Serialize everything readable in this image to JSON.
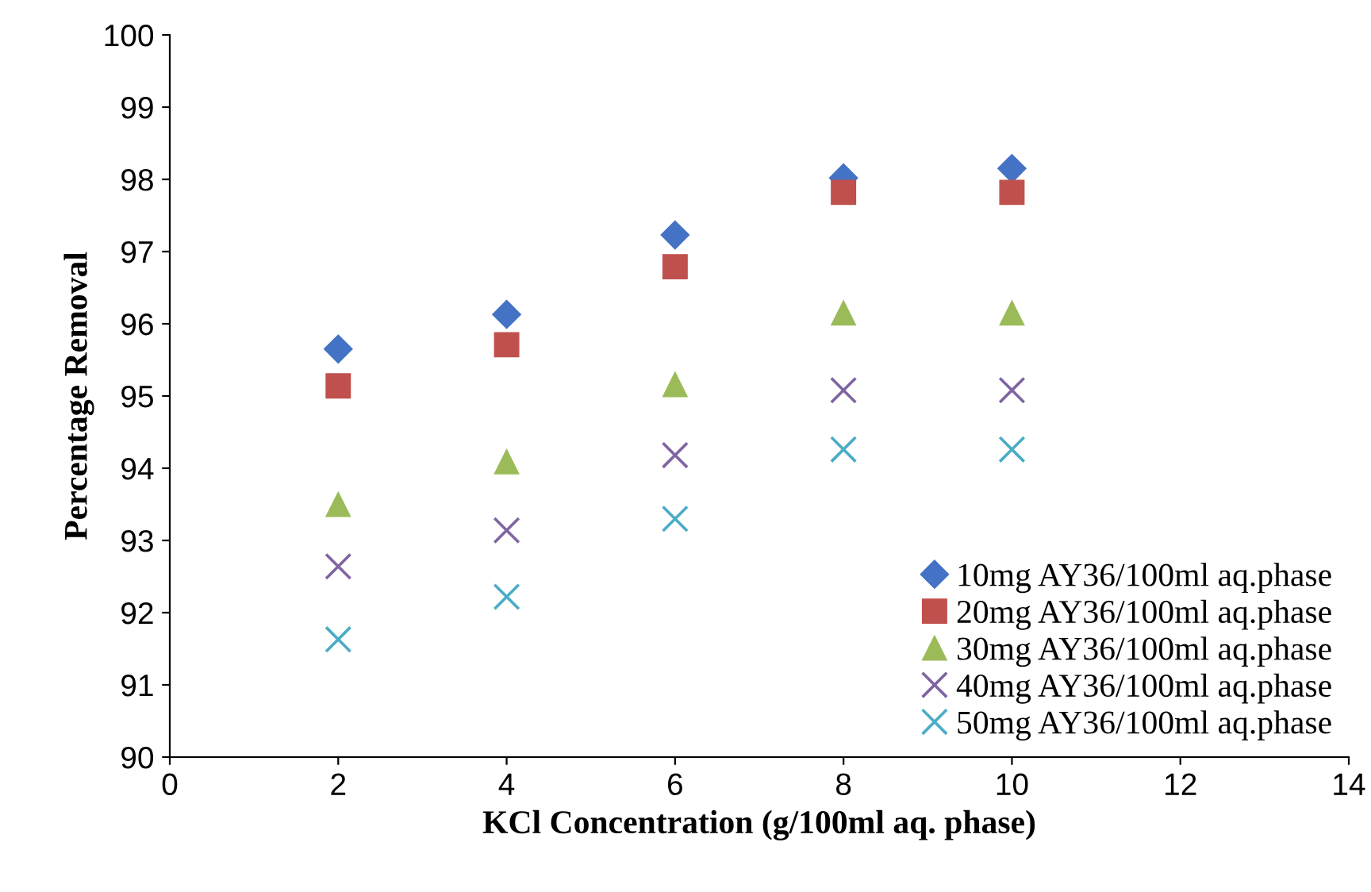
{
  "chart_data": {
    "type": "scatter",
    "xlabel": "KCl Concentration (g/100ml aq. phase)",
    "ylabel": "Percentage Removal",
    "x": [
      2,
      4,
      6,
      8,
      10
    ],
    "series": [
      {
        "name": "10mg AY36/100ml aq.phase",
        "color": "#4472c4",
        "marker": "diamond",
        "values": [
          95.65,
          96.13,
          97.23,
          98.02,
          98.15
        ]
      },
      {
        "name": "20mg AY36/100ml aq.phase",
        "color": "#c0504d",
        "marker": "square",
        "values": [
          95.14,
          95.71,
          96.79,
          97.82,
          97.82
        ]
      },
      {
        "name": "30mg AY36/100ml aq.phase",
        "color": "#9bbb59",
        "marker": "triangle",
        "values": [
          93.5,
          94.09,
          95.16,
          96.15,
          96.15
        ]
      },
      {
        "name": "40mg AY36/100ml aq.phase",
        "color": "#8064a2",
        "marker": "cross",
        "values": [
          92.64,
          93.14,
          94.18,
          95.08,
          95.08
        ]
      },
      {
        "name": "50mg AY36/100ml aq.phase",
        "color": "#4bacc6",
        "marker": "cross",
        "values": [
          91.63,
          92.22,
          93.3,
          94.26,
          94.26
        ]
      }
    ],
    "xlim": [
      0,
      14
    ],
    "xticks": [
      0,
      2,
      4,
      6,
      8,
      10,
      12,
      14
    ],
    "ylim": [
      90,
      100
    ],
    "yticks": [
      90,
      91,
      92,
      93,
      94,
      95,
      96,
      97,
      98,
      99,
      100
    ],
    "grid": false,
    "legend": "bottom right"
  }
}
